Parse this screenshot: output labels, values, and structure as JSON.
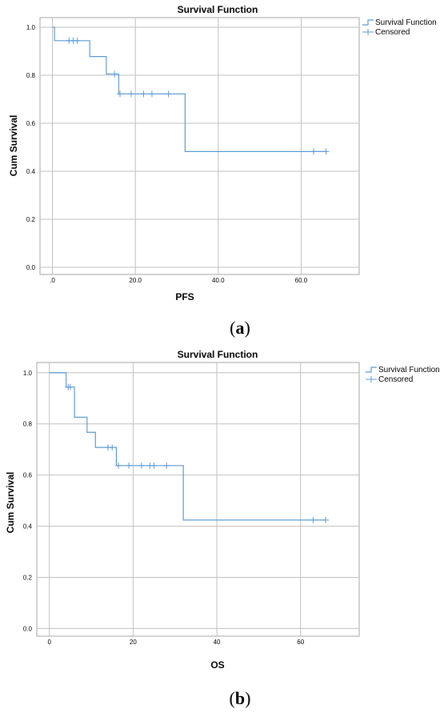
{
  "chart_data": [
    {
      "type": "line",
      "title": "Survival Function",
      "xlabel": "PFS",
      "ylabel": "Cum Survival",
      "xlim": [
        -3,
        74
      ],
      "ylim": [
        -0.03,
        1.04
      ],
      "x_ticks": [
        0,
        20,
        40,
        60
      ],
      "x_tick_labels": [
        ".0",
        "20.0",
        "40.0",
        "60.0"
      ],
      "y_ticks": [
        0,
        0.2,
        0.4,
        0.6,
        0.8,
        1.0
      ],
      "y_tick_labels": [
        "0.0",
        "0.2",
        "0.4",
        "0.6",
        "0.8",
        "1.0"
      ],
      "grid": true,
      "legend_position": "top-right",
      "series": [
        {
          "name": "Survival Function",
          "step_x": [
            0,
            0.5,
            9,
            13,
            16,
            32,
            66
          ],
          "step_y": [
            1.0,
            0.944,
            0.878,
            0.805,
            0.722,
            0.482,
            0.482
          ]
        },
        {
          "name": "Censored",
          "x": [
            4,
            5,
            6,
            15,
            16.3,
            19,
            22,
            24,
            28,
            63,
            66
          ],
          "y": [
            0.944,
            0.944,
            0.944,
            0.805,
            0.722,
            0.722,
            0.722,
            0.722,
            0.722,
            0.482,
            0.482
          ]
        }
      ],
      "color": "#5b9bd5",
      "caption_letter": "a"
    },
    {
      "type": "line",
      "title": "Survival Function",
      "xlabel": "OS",
      "ylabel": "Cum Survival",
      "xlim": [
        -3,
        74
      ],
      "ylim": [
        -0.03,
        1.04
      ],
      "x_ticks": [
        0,
        20,
        40,
        60
      ],
      "x_tick_labels": [
        "0",
        "20",
        "40",
        "60"
      ],
      "y_ticks": [
        0,
        0.2,
        0.4,
        0.6,
        0.8,
        1.0
      ],
      "y_tick_labels": [
        "0.0",
        "0.2",
        "0.4",
        "0.6",
        "0.8",
        "1.0"
      ],
      "grid": true,
      "legend_position": "top-right",
      "series": [
        {
          "name": "Survival Function",
          "step_x": [
            0,
            4,
            6,
            9,
            11,
            16,
            32,
            66
          ],
          "step_y": [
            1.0,
            0.944,
            0.826,
            0.767,
            0.708,
            0.637,
            0.424,
            0.424
          ]
        },
        {
          "name": "Censored",
          "x": [
            4.5,
            5,
            14,
            15,
            16.5,
            19,
            22,
            24,
            25,
            28,
            63,
            66
          ],
          "y": [
            0.944,
            0.944,
            0.708,
            0.708,
            0.637,
            0.637,
            0.637,
            0.637,
            0.637,
            0.637,
            0.424,
            0.424
          ]
        }
      ],
      "color": "#5b9bd5",
      "caption_letter": "b"
    }
  ]
}
